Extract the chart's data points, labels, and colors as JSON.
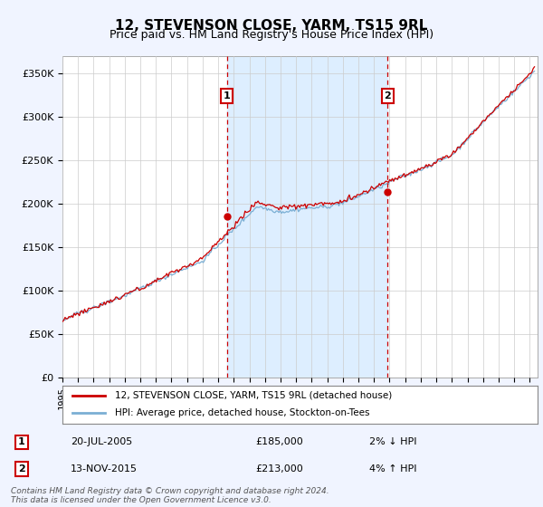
{
  "title": "12, STEVENSON CLOSE, YARM, TS15 9RL",
  "subtitle": "Price paid vs. HM Land Registry's House Price Index (HPI)",
  "legend_line1": "12, STEVENSON CLOSE, YARM, TS15 9RL (detached house)",
  "legend_line2": "HPI: Average price, detached house, Stockton-on-Tees",
  "annotation1_label": "1",
  "annotation1_date": "20-JUL-2005",
  "annotation1_price": "£185,000",
  "annotation1_hpi": "2% ↓ HPI",
  "annotation1_year": 2005.55,
  "annotation1_value": 185000,
  "annotation2_label": "2",
  "annotation2_date": "13-NOV-2015",
  "annotation2_price": "£213,000",
  "annotation2_hpi": "4% ↑ HPI",
  "annotation2_year": 2015.87,
  "annotation2_value": 213000,
  "ylabel_ticks": [
    "£0",
    "£50K",
    "£100K",
    "£150K",
    "£200K",
    "£250K",
    "£300K",
    "£350K"
  ],
  "ytick_values": [
    0,
    50000,
    100000,
    150000,
    200000,
    250000,
    300000,
    350000
  ],
  "ylim": [
    0,
    370000
  ],
  "xlim_start": 1995.0,
  "xlim_end": 2025.5,
  "hpi_color": "#7bafd4",
  "price_color": "#cc0000",
  "vline_color": "#cc0000",
  "shade_color": "#ddeeff",
  "background_color": "#f0f4ff",
  "plot_bg_color": "#ffffff",
  "grid_color": "#cccccc",
  "footnote": "Contains HM Land Registry data © Crown copyright and database right 2024.\nThis data is licensed under the Open Government Licence v3.0.",
  "title_fontsize": 11,
  "subtitle_fontsize": 9
}
